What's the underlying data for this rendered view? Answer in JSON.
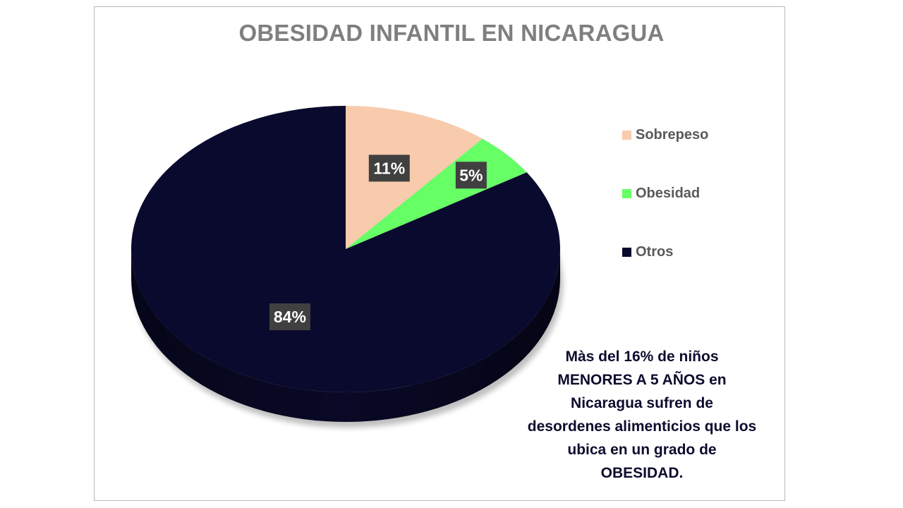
{
  "chart_data": {
    "type": "pie",
    "title": "OBESIDAD INFANTIL EN NICARAGUA",
    "slices": [
      {
        "label": "Sobrepeso",
        "value": 11,
        "data_label": "11%",
        "color": "#f8cbad"
      },
      {
        "label": "Obesidad",
        "value": 5,
        "data_label": "5%",
        "color": "#66ff66"
      },
      {
        "label": "Otros",
        "value": 84,
        "data_label": "84%",
        "color": "#0a0a2e"
      }
    ],
    "legend_position": "right",
    "label_box_color": "#404040",
    "label_text_color": "#ffffff"
  },
  "note": {
    "lines": [
      "Màs del 16% de niños",
      "MENORES A 5 AÑOS en",
      "Nicaragua sufren de",
      "desordenes alimenticios que los",
      "ubica en un grado de",
      "OBESIDAD."
    ]
  }
}
